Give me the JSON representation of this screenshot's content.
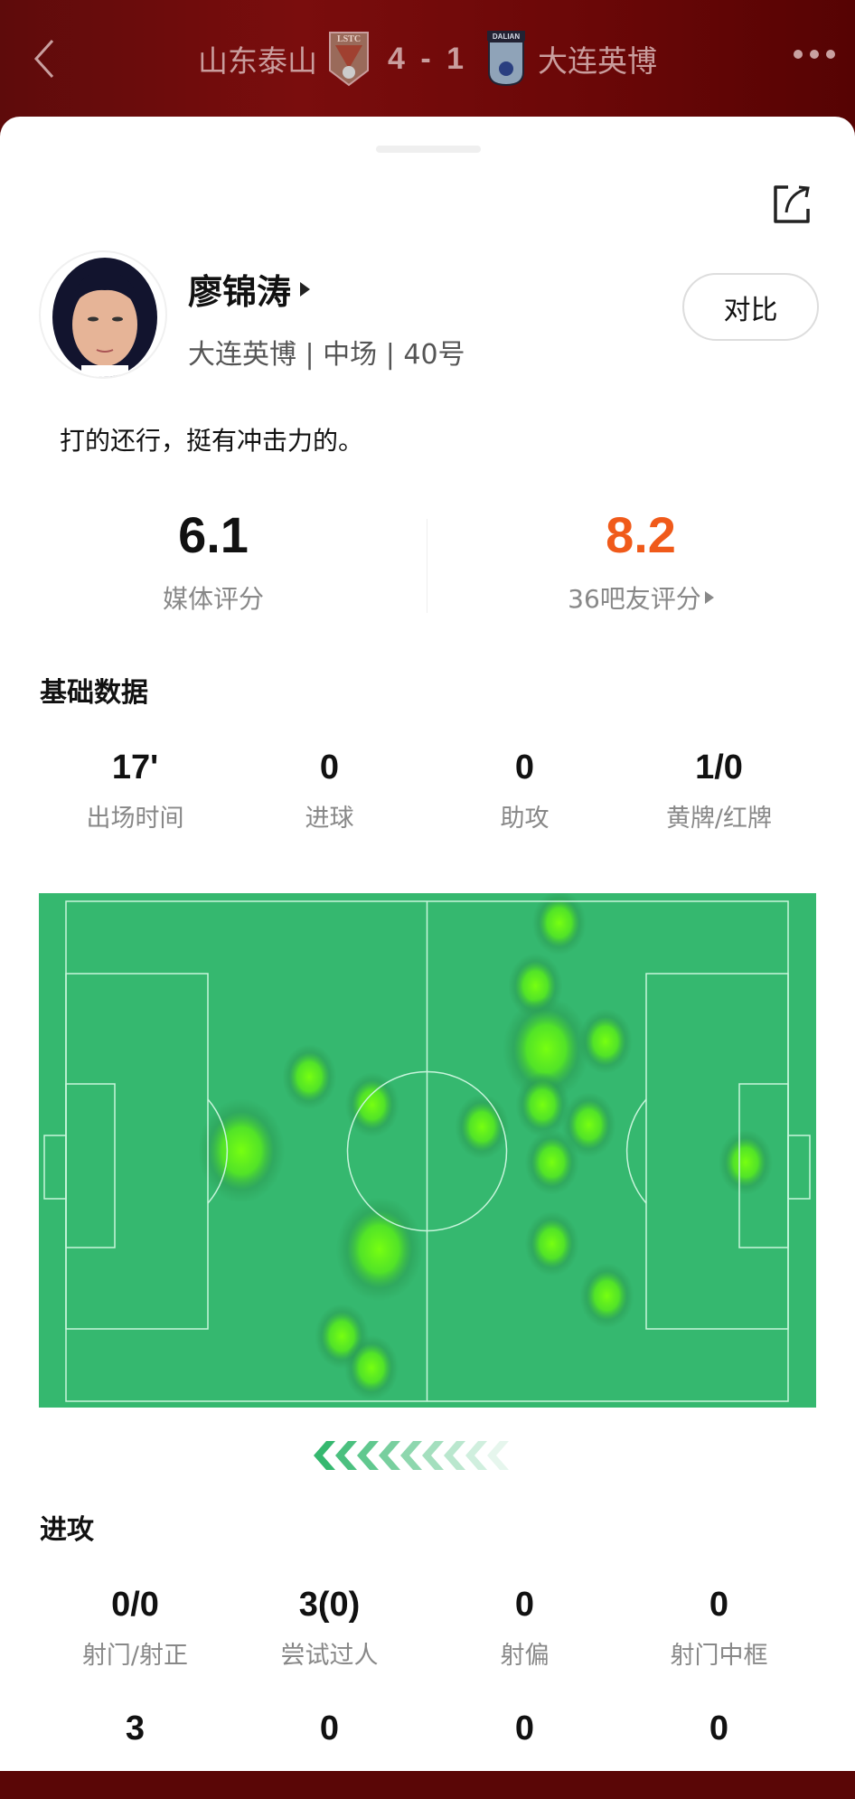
{
  "header": {
    "home_team": "山东泰山",
    "score": "4 - 1",
    "away_team": "大连英博",
    "home_badge_text": "LSTC",
    "away_badge_text": "DALIAN",
    "back_icon": "chevron-left-icon",
    "more_icon": "more-dots-icon"
  },
  "player": {
    "name": "廖锦涛",
    "subtitle": "大连英博 | 中场 | 40号",
    "compare_label": "对比",
    "comment": "打的还行，挺有冲击力的。",
    "share_icon": "share-icon"
  },
  "ratings": [
    {
      "value": "6.1",
      "label": "媒体评分",
      "color": "#111111"
    },
    {
      "value": "8.2",
      "label": "36吧友评分",
      "color": "#f05a1a"
    }
  ],
  "basic": {
    "title": "基础数据",
    "stats": [
      {
        "value": "17'",
        "label": "出场时间"
      },
      {
        "value": "0",
        "label": "进球"
      },
      {
        "value": "0",
        "label": "助攻"
      },
      {
        "value": "1/0",
        "label": "黄牌/红牌"
      }
    ]
  },
  "heatmap": {
    "pitch_color": "#35b86f",
    "spot_color": "#66ff1a",
    "spots_pct": [
      [
        68.3,
        4.3,
        1
      ],
      [
        65.0,
        16.9,
        1
      ],
      [
        66.5,
        29.5,
        1.6
      ],
      [
        74.7,
        28.0,
        1
      ],
      [
        33.7,
        35.1,
        1
      ],
      [
        42.4,
        40.7,
        1
      ],
      [
        24.3,
        49.9,
        1.6
      ],
      [
        57.6,
        45.1,
        1
      ],
      [
        66.0,
        40.7,
        1
      ],
      [
        72.4,
        44.7,
        1
      ],
      [
        67.3,
        52.2,
        1
      ],
      [
        94.1,
        52.2,
        1
      ],
      [
        43.4,
        69.6,
        1.6
      ],
      [
        67.3,
        68.5,
        1
      ],
      [
        74.9,
        78.9,
        1
      ],
      [
        38.2,
        87.0,
        1
      ],
      [
        42.3,
        93.3,
        1
      ]
    ],
    "direction": "attacking-left"
  },
  "attack": {
    "title": "进攻",
    "stats": [
      {
        "value": "0/0",
        "label": "射门/射正"
      },
      {
        "value": "3(0)",
        "label": "尝试过人"
      },
      {
        "value": "0",
        "label": "射偏"
      },
      {
        "value": "0",
        "label": "射门中框"
      }
    ],
    "stats_row2": [
      {
        "value": "3"
      },
      {
        "value": "0"
      },
      {
        "value": "0"
      },
      {
        "value": "0"
      }
    ]
  }
}
